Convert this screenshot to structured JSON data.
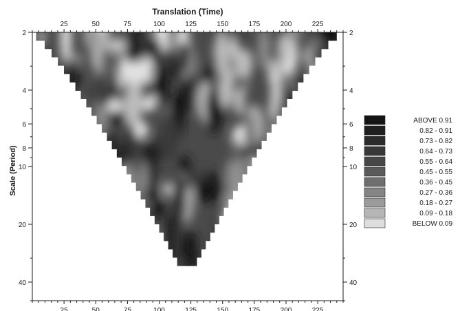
{
  "chart_data": {
    "type": "heatmap",
    "title": "Translation (Time)",
    "xlabel": "Translation (Time)",
    "ylabel": "Scale (Period)",
    "xlim": [
      0,
      245
    ],
    "ylim_log": [
      2,
      50
    ],
    "x_ticks": [
      25,
      50,
      75,
      100,
      125,
      150,
      175,
      200,
      225
    ],
    "y_ticks": [
      2,
      4,
      6,
      8,
      10,
      20,
      40
    ],
    "cone_of_influence": {
      "x_center": 122,
      "scale_top": 2,
      "scale_bottom": 33,
      "x_left_at_top": 3,
      "x_right_at_top": 240
    },
    "legend": [
      {
        "label": "ABOVE  0.91",
        "color": "#141414"
      },
      {
        "label": "0.82 - 0.91",
        "color": "#1f1f1f"
      },
      {
        "label": "0.73 - 0.82",
        "color": "#2b2b2b"
      },
      {
        "label": "0.64 - 0.73",
        "color": "#383838"
      },
      {
        "label": "0.55 - 0.64",
        "color": "#474747"
      },
      {
        "label": "0.45 - 0.55",
        "color": "#5a5a5a"
      },
      {
        "label": "0.36 - 0.45",
        "color": "#6e6e6e"
      },
      {
        "label": "0.27 - 0.36",
        "color": "#858585"
      },
      {
        "label": "0.18 - 0.27",
        "color": "#9c9c9c"
      },
      {
        "label": "0.09 - 0.18",
        "color": "#b6b6b6"
      },
      {
        "label": "BELOW  0.09",
        "color": "#dedede"
      }
    ],
    "grid": false
  }
}
